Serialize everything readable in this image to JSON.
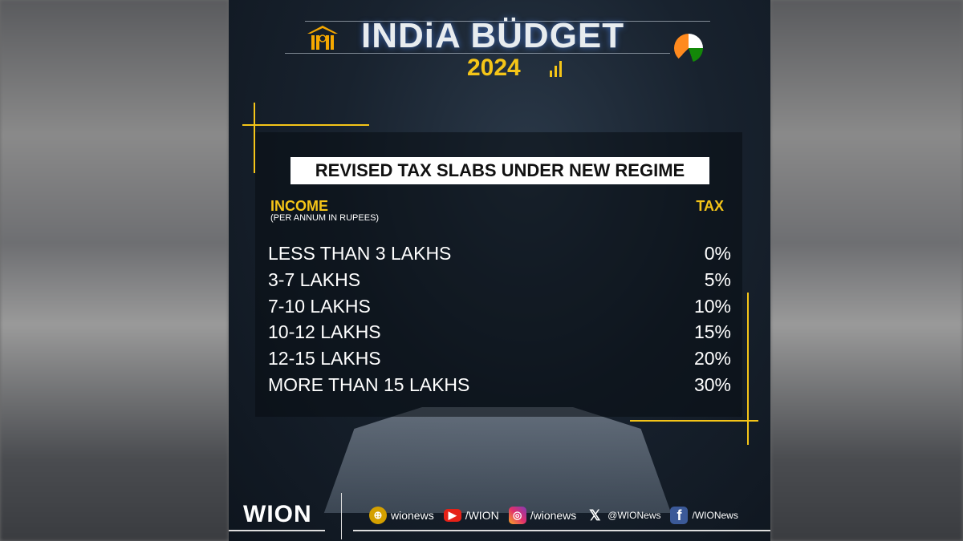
{
  "header": {
    "title": "INDiA BÜDGET",
    "year": "2024"
  },
  "banner": "REVISED TAX SLABS UNDER NEW REGIME",
  "table": {
    "income_header": "INCOME",
    "income_subheader": "(PER ANNUM IN RUPEES)",
    "tax_header": "TAX",
    "rows": [
      {
        "income": "LESS THAN 3 LAKHS",
        "tax": "0%"
      },
      {
        "income": "3-7 LAKHS",
        "tax": "5%"
      },
      {
        "income": "7-10 LAKHS",
        "tax": "10%"
      },
      {
        "income": "10-12 LAKHS",
        "tax": "15%"
      },
      {
        "income": "12-15 LAKHS",
        "tax": "20%"
      },
      {
        "income": "MORE THAN 15 LAKHS",
        "tax": "30%"
      }
    ]
  },
  "footer": {
    "brand": "WION",
    "socials": [
      {
        "icon": "globe-icon",
        "handle": "wionews"
      },
      {
        "icon": "youtube-icon",
        "handle": "/WION"
      },
      {
        "icon": "instagram-icon",
        "handle": "/wionews"
      },
      {
        "icon": "x-icon",
        "handle": "@WIONews"
      },
      {
        "icon": "facebook-icon",
        "handle": "/WIONews"
      }
    ]
  },
  "colors": {
    "accent": "#f5c518",
    "background": "#141d28"
  }
}
